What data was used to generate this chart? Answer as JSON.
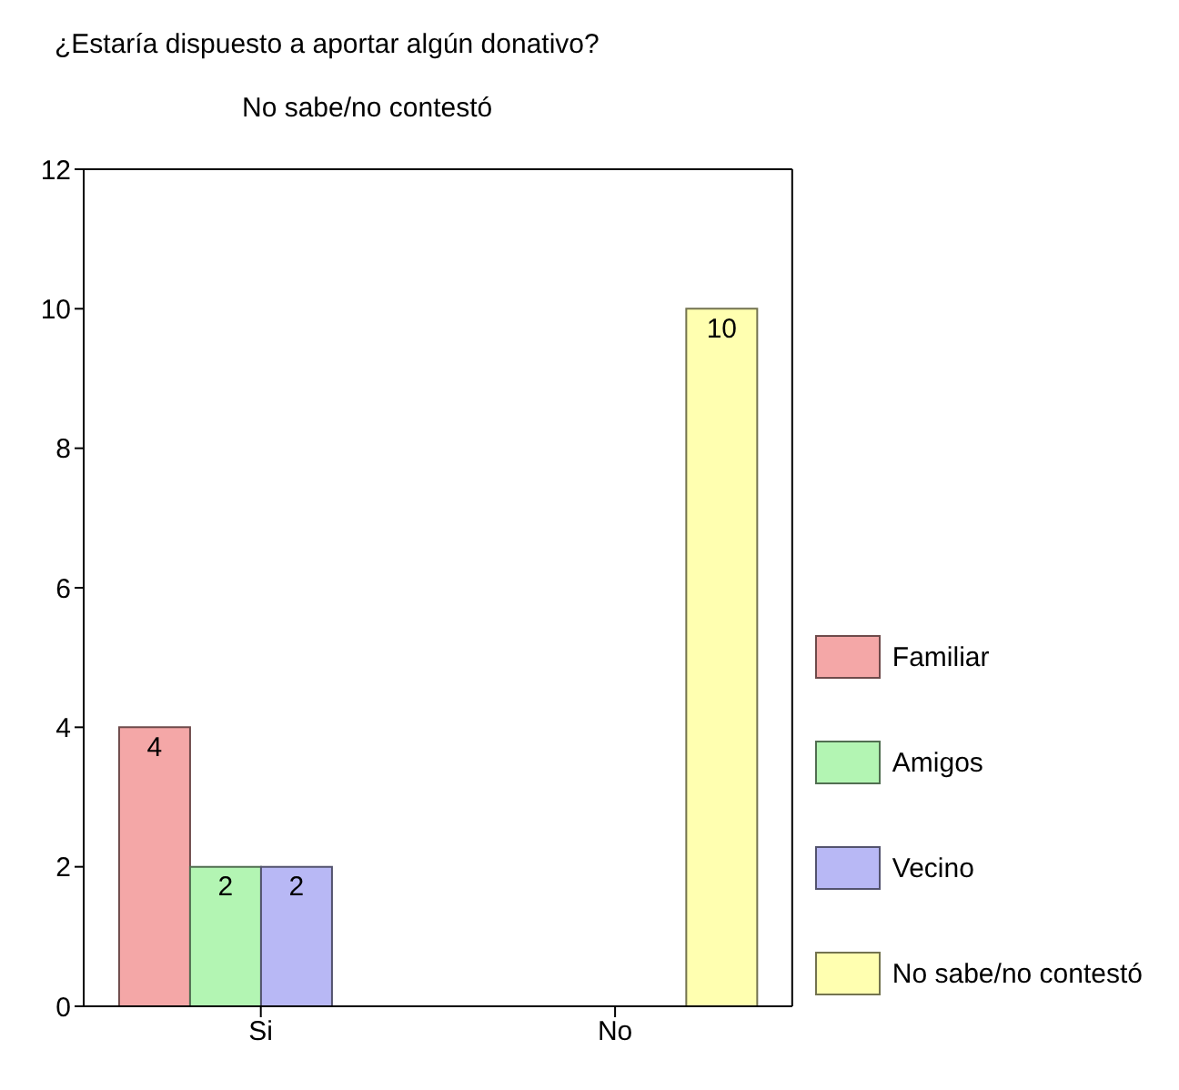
{
  "chart_data": {
    "type": "bar",
    "title": "¿Estaría dispuesto a aportar algún donativo?",
    "subtitle": "No sabe/no contestó",
    "categories": [
      "Si",
      "No"
    ],
    "series": [
      {
        "name": "Familiar",
        "color": "#f4a7a7",
        "values": [
          4,
          null
        ]
      },
      {
        "name": "Amigos",
        "color": "#b3f5b3",
        "values": [
          2,
          null
        ]
      },
      {
        "name": "Vecino",
        "color": "#b8b8f5",
        "values": [
          2,
          null
        ]
      },
      {
        "name": "No sabe/no contestó",
        "color": "#ffffb0",
        "values": [
          null,
          10
        ]
      }
    ],
    "ylim": [
      0,
      12
    ],
    "yticks": [
      0,
      2,
      4,
      6,
      8,
      10,
      12
    ],
    "grid": false,
    "legend": "right",
    "data_labels": true
  }
}
